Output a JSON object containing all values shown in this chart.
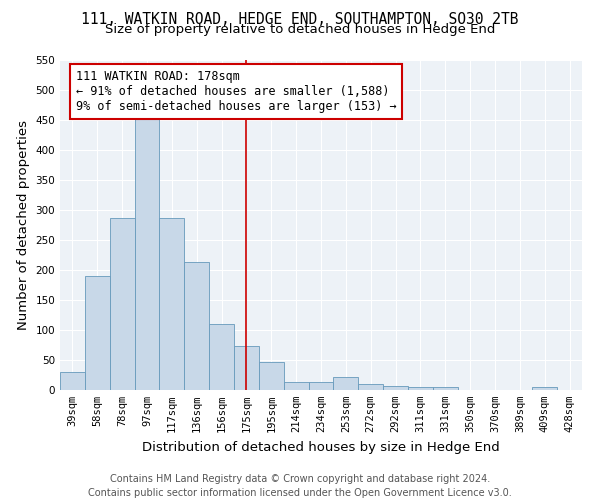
{
  "title": "111, WATKIN ROAD, HEDGE END, SOUTHAMPTON, SO30 2TB",
  "subtitle": "Size of property relative to detached houses in Hedge End",
  "xlabel": "Distribution of detached houses by size in Hedge End",
  "ylabel": "Number of detached properties",
  "footer_line1": "Contains HM Land Registry data © Crown copyright and database right 2024.",
  "footer_line2": "Contains public sector information licensed under the Open Government Licence v3.0.",
  "bin_labels": [
    "39sqm",
    "58sqm",
    "78sqm",
    "97sqm",
    "117sqm",
    "136sqm",
    "156sqm",
    "175sqm",
    "195sqm",
    "214sqm",
    "234sqm",
    "253sqm",
    "272sqm",
    "292sqm",
    "311sqm",
    "331sqm",
    "350sqm",
    "370sqm",
    "389sqm",
    "409sqm",
    "428sqm"
  ],
  "bar_heights": [
    30,
    190,
    287,
    460,
    287,
    213,
    110,
    73,
    46,
    14,
    14,
    21,
    10,
    6,
    5,
    5,
    0,
    0,
    0,
    5,
    0
  ],
  "bar_color": "#c8d8e8",
  "bar_edge_color": "#6699bb",
  "property_line_x": 7,
  "annotation_line1": "111 WATKIN ROAD: 178sqm",
  "annotation_line2": "← 91% of detached houses are smaller (1,588)",
  "annotation_line3": "9% of semi-detached houses are larger (153) →",
  "annotation_box_color": "white",
  "annotation_box_edge_color": "#cc0000",
  "vline_color": "#cc0000",
  "ylim": [
    0,
    550
  ],
  "yticks": [
    0,
    50,
    100,
    150,
    200,
    250,
    300,
    350,
    400,
    450,
    500,
    550
  ],
  "bg_color": "#edf2f7",
  "grid_color": "white",
  "title_fontsize": 10.5,
  "subtitle_fontsize": 9.5,
  "axis_label_fontsize": 9.5,
  "tick_fontsize": 7.5,
  "annotation_fontsize": 8.5,
  "footer_fontsize": 7
}
